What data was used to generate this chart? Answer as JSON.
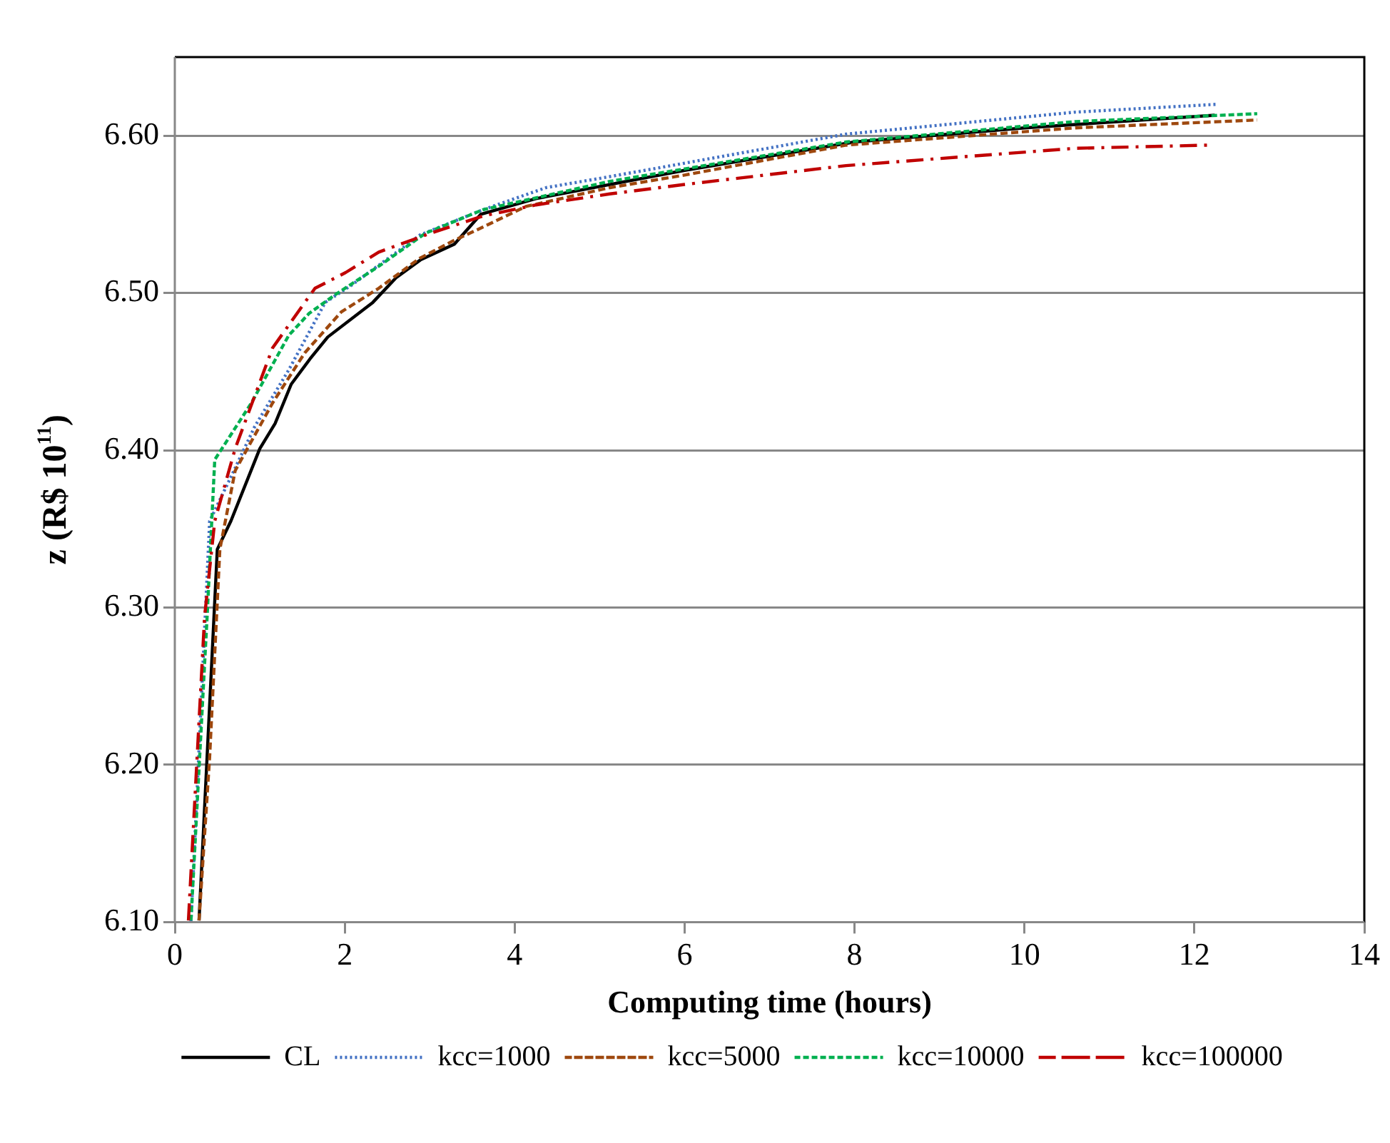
{
  "chart_data": {
    "type": "line",
    "xlabel": "Computing time (hours)",
    "ylabel": "z (R$ 10$^{11}$)",
    "xlim": [
      0,
      14
    ],
    "xticks": [
      0,
      2,
      4,
      6,
      8,
      10,
      12,
      14
    ],
    "ylim": [
      6.1,
      6.65
    ],
    "yticks": [
      {
        "value": 6.1,
        "label": "6.10"
      },
      {
        "value": 6.2,
        "label": "6.20"
      },
      {
        "value": 6.3,
        "label": "6.30"
      },
      {
        "value": 6.4,
        "label": "6.40"
      },
      {
        "value": 6.5,
        "label": "6.50"
      },
      {
        "value": 6.6,
        "label": "6.60"
      }
    ],
    "grid": "y",
    "legend": "bottom",
    "marker": "none",
    "series": [
      {
        "name": "CL",
        "color": "#000000",
        "line_style": "solid",
        "x": [
          0.285,
          0.5,
          0.66,
          1.0,
          1.18,
          1.37,
          1.59,
          1.8,
          2.33,
          2.61,
          2.89,
          3.29,
          3.6,
          4.25,
          5.12,
          6,
          8,
          10,
          12.24
        ],
        "values": [
          6.101,
          6.337,
          6.355,
          6.401,
          6.417,
          6.442,
          6.458,
          6.472,
          6.494,
          6.51,
          6.521,
          6.531,
          6.55,
          6.56,
          6.569,
          6.578,
          6.596,
          6.605,
          6.613
        ]
      },
      {
        "name": "kcc=1000",
        "color": "#4472c4",
        "line_style": "dotted",
        "x": [
          0.19,
          0.41,
          0.66,
          0.94,
          1.34,
          1.77,
          2.08,
          2.89,
          3.63,
          4.37,
          5.12,
          7.9,
          10.6,
          12.27
        ],
        "values": [
          6.1,
          6.355,
          6.383,
          6.415,
          6.451,
          6.494,
          6.505,
          6.537,
          6.553,
          6.567,
          6.574,
          6.601,
          6.615,
          6.62
        ]
      },
      {
        "name": "kcc=5000",
        "color": "#9e480e",
        "line_style": "dashed",
        "x": [
          0.285,
          0.41,
          0.53,
          0.71,
          1.15,
          1.53,
          1.96,
          2.4,
          2.88,
          3.27,
          3.63,
          4.13,
          5.12,
          6,
          7.9,
          10.6,
          12.74
        ],
        "values": [
          6.101,
          6.205,
          6.337,
          6.387,
          6.43,
          6.462,
          6.488,
          6.503,
          6.522,
          6.533,
          6.542,
          6.555,
          6.567,
          6.575,
          6.594,
          6.605,
          6.61
        ]
      },
      {
        "name": "kcc=10000",
        "color": "#00b050",
        "line_style": "dashed",
        "x": [
          0.19,
          0.38,
          0.47,
          0.9,
          1.34,
          1.58,
          1.89,
          2.4,
          2.95,
          3.63,
          5.12,
          7.9,
          10.6,
          12.74
        ],
        "values": [
          6.101,
          6.294,
          6.394,
          6.43,
          6.473,
          6.487,
          6.499,
          6.517,
          6.538,
          6.553,
          6.571,
          6.596,
          6.609,
          6.614
        ]
      },
      {
        "name": "kcc=100000",
        "color": "#c00000",
        "line_style": "dashdot",
        "x": [
          0.16,
          0.35,
          0.47,
          0.71,
          1.15,
          1.53,
          1.65,
          2.01,
          2.4,
          3.01,
          3.63,
          4.25,
          5.12,
          6,
          7.9,
          10.6,
          12.15
        ],
        "values": [
          6.101,
          6.294,
          6.355,
          6.401,
          6.465,
          6.494,
          6.503,
          6.513,
          6.526,
          6.538,
          6.549,
          6.556,
          6.563,
          6.569,
          6.581,
          6.592,
          6.594
        ]
      }
    ]
  }
}
